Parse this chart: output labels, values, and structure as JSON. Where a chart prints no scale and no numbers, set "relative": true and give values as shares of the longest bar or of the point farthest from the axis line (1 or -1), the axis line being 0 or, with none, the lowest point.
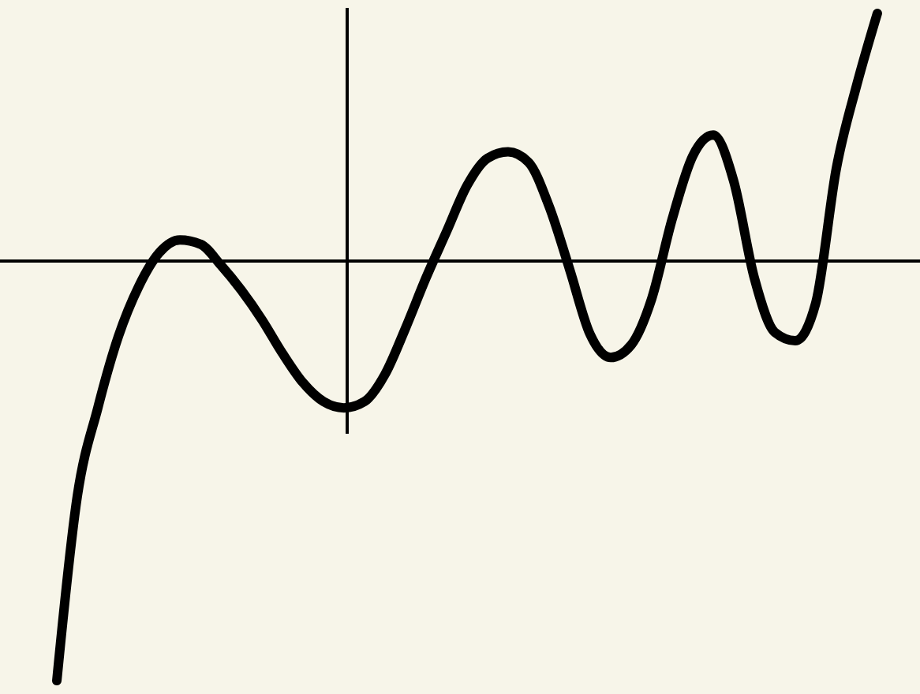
{
  "chart_data": {
    "type": "line",
    "relative": true,
    "categories": [
      null,
      null,
      null,
      null,
      null,
      null,
      null,
      null,
      null,
      null,
      null,
      null,
      null,
      null,
      null,
      null,
      null,
      null,
      null,
      null,
      null,
      null,
      null,
      null,
      null,
      null,
      null,
      null,
      null,
      null,
      null,
      null,
      null,
      null,
      null,
      null,
      null,
      null,
      null,
      null,
      null
    ],
    "series": [
      {
        "color": "#000000",
        "values": [
          -1,
          -0.56,
          -0.35,
          -0.18,
          -0.06,
          0.02,
          0.05,
          0.04,
          -0.01,
          -0.07,
          -0.14,
          -0.22,
          -0.29,
          -0.335,
          -0.35,
          -0.335,
          -0.27,
          -0.16,
          -0.04,
          0.07,
          0.18,
          0.245,
          0.26,
          0.235,
          0.13,
          -0.02,
          -0.175,
          -0.23,
          -0.2,
          -0.09,
          0.1,
          0.25,
          0.3,
          0.19,
          -0.04,
          -0.17,
          -0.19,
          -0.1,
          0.22,
          0.42,
          0.59
        ]
      }
    ],
    "marker": "none",
    "line_style": "solid"
  }
}
